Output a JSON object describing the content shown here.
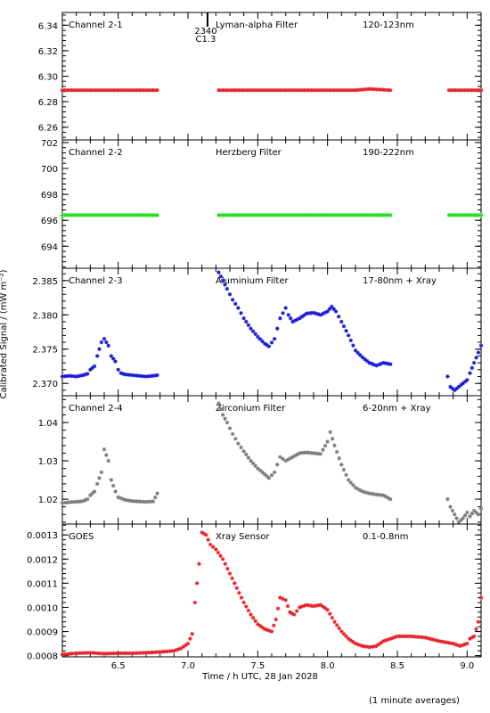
{
  "chart_data": {
    "type": "scatter",
    "x_range": [
      6.1,
      9.1
    ],
    "x_ticks": [
      6.5,
      7.0,
      7.5,
      8.0,
      8.5,
      9.0
    ],
    "x_tick_labels": [
      "6.5",
      "7.0",
      "7.5",
      "8.0",
      "8.5",
      "9.0"
    ],
    "xlabel": "Time / h UTC, 28 Jan 2028",
    "ylabel": "Calibrated Signal / (mW m⁻²)",
    "footnote": "(1 minute averages)",
    "marker": "*",
    "event_marker": {
      "x": 7.14,
      "labels": [
        "2340",
        "C1.3"
      ]
    },
    "panels": [
      {
        "name": "Channel 2-1",
        "filter": "Lyman-alpha Filter",
        "band": "120-123nm",
        "color": "#e8242a",
        "ylim": [
          6.25,
          6.35
        ],
        "y_ticks": [
          6.26,
          6.28,
          6.3,
          6.32,
          6.34
        ],
        "y_tick_labels": [
          "6.26",
          "6.28",
          "6.30",
          "6.32",
          "6.34"
        ],
        "segments": [
          {
            "x": [
              6.1,
              6.25,
              6.4,
              6.55,
              6.7,
              6.78
            ],
            "y": [
              6.289,
              6.289,
              6.289,
              6.289,
              6.289,
              6.289
            ]
          },
          {
            "x": [
              7.22,
              7.4,
              7.6,
              7.8,
              8.0,
              8.2,
              8.3,
              8.45
            ],
            "y": [
              6.289,
              6.289,
              6.289,
              6.289,
              6.289,
              6.289,
              6.29,
              6.289
            ]
          },
          {
            "x": [
              8.87,
              9.0,
              9.1
            ],
            "y": [
              6.289,
              6.289,
              6.289
            ]
          }
        ]
      },
      {
        "name": "Channel 2-2",
        "filter": "Herzberg Filter",
        "band": "190-222nm",
        "color": "#22e01e",
        "ylim": [
          692.3,
          702.2
        ],
        "y_ticks": [
          694,
          696,
          698,
          700,
          702
        ],
        "y_tick_labels": [
          "694",
          "696",
          "698",
          "700",
          "702"
        ],
        "segments": [
          {
            "x": [
              6.1,
              6.25,
              6.4,
              6.55,
              6.7,
              6.78
            ],
            "y": [
              696.4,
              696.4,
              696.4,
              696.4,
              696.4,
              696.4
            ]
          },
          {
            "x": [
              7.22,
              7.4,
              7.6,
              7.8,
              8.0,
              8.2,
              8.45
            ],
            "y": [
              696.4,
              696.4,
              696.4,
              696.4,
              696.4,
              696.4,
              696.4
            ]
          },
          {
            "x": [
              8.87,
              9.0,
              9.1
            ],
            "y": [
              696.4,
              696.4,
              696.4
            ]
          }
        ]
      },
      {
        "name": "Channel 2-3",
        "filter": "Aluminium Filter",
        "band": "17-80nm + Xray",
        "color": "#1a1ad6",
        "ylim": [
          2.3682,
          2.3868
        ],
        "y_ticks": [
          2.37,
          2.375,
          2.38,
          2.385
        ],
        "y_tick_labels": [
          "2.370",
          "2.375",
          "2.380",
          "2.385"
        ],
        "segments": [
          {
            "x": [
              6.1,
              6.15,
              6.2,
              6.25,
              6.28,
              6.3,
              6.33,
              6.35,
              6.38,
              6.4,
              6.43,
              6.45,
              6.48,
              6.5,
              6.52,
              6.55,
              6.6,
              6.65,
              6.7,
              6.75,
              6.78
            ],
            "y": [
              2.371,
              2.3711,
              2.371,
              2.3712,
              2.3714,
              2.372,
              2.3725,
              2.374,
              2.376,
              2.3765,
              2.3755,
              2.374,
              2.3732,
              2.372,
              2.3715,
              2.3713,
              2.3712,
              2.3711,
              2.371,
              2.3711,
              2.3712
            ]
          },
          {
            "x": [
              7.22,
              7.25,
              7.28,
              7.32,
              7.36,
              7.4,
              7.45,
              7.5,
              7.55,
              7.58,
              7.62,
              7.66,
              7.7,
              7.72,
              7.75,
              7.8,
              7.85,
              7.9,
              7.95,
              8.0,
              8.03,
              8.06,
              8.1,
              8.15,
              8.2,
              8.25,
              8.3,
              8.35,
              8.4,
              8.45
            ],
            "y": [
              2.3862,
              2.385,
              2.3838,
              2.3822,
              2.381,
              2.3795,
              2.378,
              2.3768,
              2.3758,
              2.3754,
              2.3765,
              2.3795,
              2.381,
              2.38,
              2.379,
              2.3795,
              2.3802,
              2.3803,
              2.38,
              2.3805,
              2.3812,
              2.3805,
              2.379,
              2.377,
              2.3748,
              2.3738,
              2.373,
              2.3726,
              2.373,
              2.3728
            ]
          },
          {
            "x": [
              8.86,
              8.88,
              8.91,
              8.94,
              8.97,
              9.0,
              9.02,
              9.05,
              9.08,
              9.1
            ],
            "y": [
              2.371,
              2.3695,
              2.369,
              2.3695,
              2.37,
              2.3705,
              2.3715,
              2.373,
              2.3745,
              2.3755
            ]
          }
        ]
      },
      {
        "name": "Channel 2-4",
        "filter": "Zirconium Filter",
        "band": "6-20nm + Xray",
        "color": "#7d7d7d",
        "ylim": [
          1.0135,
          1.047
        ],
        "y_ticks": [
          1.02,
          1.03,
          1.04
        ],
        "y_tick_labels": [
          "1.02",
          "1.03",
          "1.04"
        ],
        "segments": [
          {
            "x": [
              6.1,
              6.15,
              6.2,
              6.25,
              6.28,
              6.3,
              6.33,
              6.35,
              6.38,
              6.4,
              6.43,
              6.45,
              6.48,
              6.5,
              6.55,
              6.6,
              6.65,
              6.7,
              6.75,
              6.78
            ],
            "y": [
              1.019,
              1.0192,
              1.0193,
              1.0195,
              1.02,
              1.021,
              1.022,
              1.024,
              1.027,
              1.033,
              1.03,
              1.025,
              1.022,
              1.0205,
              1.0198,
              1.0195,
              1.0194,
              1.0193,
              1.0194,
              1.0215
            ]
          },
          {
            "x": [
              7.22,
              7.25,
              7.28,
              7.32,
              7.36,
              7.4,
              7.45,
              7.5,
              7.55,
              7.58,
              7.62,
              7.66,
              7.7,
              7.75,
              7.8,
              7.85,
              7.9,
              7.95,
              8.0,
              8.02,
              8.05,
              8.1,
              8.15,
              8.2,
              8.25,
              8.3,
              8.35,
              8.4,
              8.45
            ],
            "y": [
              1.045,
              1.042,
              1.04,
              1.037,
              1.0345,
              1.0325,
              1.03,
              1.028,
              1.0265,
              1.0255,
              1.027,
              1.031,
              1.03,
              1.031,
              1.032,
              1.0322,
              1.032,
              1.0318,
              1.035,
              1.0375,
              1.034,
              1.029,
              1.025,
              1.023,
              1.022,
              1.0215,
              1.0212,
              1.021,
              1.02
            ]
          },
          {
            "x": [
              8.86,
              8.88,
              8.91,
              8.94,
              8.97,
              9.0,
              9.02,
              9.05,
              9.08,
              9.1
            ],
            "y": [
              1.02,
              1.018,
              1.016,
              1.014,
              1.015,
              1.0165,
              1.0155,
              1.017,
              1.016,
              1.0175
            ]
          }
        ]
      },
      {
        "name": "GOES",
        "filter": "Xray Sensor",
        "band": "0.1-0.8nm",
        "color": "#e8242a",
        "ylim": [
          0.000795,
          0.001345
        ],
        "y_ticks": [
          0.0008,
          0.0009,
          0.001,
          0.0011,
          0.0012,
          0.0013
        ],
        "y_tick_labels": [
          "0.0008",
          "0.0009",
          "0.0010",
          "0.0011",
          "0.0012",
          "0.0013"
        ],
        "segments": [
          {
            "x": [
              6.1,
              6.2,
              6.3,
              6.4,
              6.5,
              6.6,
              6.7,
              6.8,
              6.9,
              6.95,
              7.0,
              7.03,
              7.05,
              7.08,
              7.1,
              7.13,
              7.16,
              7.2,
              7.25,
              7.3,
              7.35,
              7.4,
              7.45,
              7.5,
              7.55,
              7.6,
              7.63,
              7.66,
              7.7,
              7.73,
              7.76,
              7.8,
              7.85,
              7.9,
              7.95,
              8.0,
              8.05,
              8.1,
              8.15,
              8.2,
              8.25,
              8.3,
              8.35,
              8.4,
              8.5,
              8.6,
              8.7,
              8.8,
              8.9,
              8.95,
              9.0,
              9.02,
              9.05,
              9.08,
              9.1
            ],
            "y": [
              0.000805,
              0.00081,
              0.000812,
              0.000808,
              0.00081,
              0.00081,
              0.000812,
              0.000815,
              0.00082,
              0.00083,
              0.00085,
              0.00089,
              0.00102,
              0.00118,
              0.00131,
              0.0013,
              0.00126,
              0.00124,
              0.0012,
              0.00114,
              0.00108,
              0.00102,
              0.00097,
              0.00093,
              0.00091,
              0.0009,
              0.00095,
              0.00104,
              0.00103,
              0.00098,
              0.00097,
              0.001,
              0.00101,
              0.001005,
              0.00101,
              0.00099,
              0.00094,
              0.0009,
              0.00087,
              0.00085,
              0.00084,
              0.000835,
              0.00084,
              0.00086,
              0.00088,
              0.00088,
              0.000875,
              0.00086,
              0.00085,
              0.00084,
              0.00085,
              0.00087,
              0.00088,
              0.00094,
              0.00104
            ]
          }
        ]
      }
    ]
  }
}
